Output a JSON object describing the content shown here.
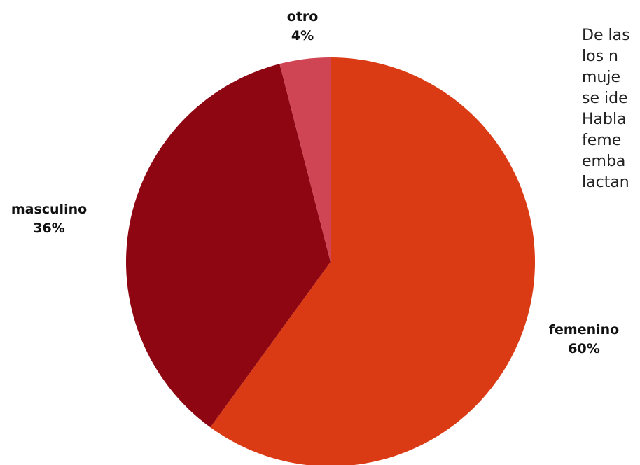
{
  "chart_data": {
    "type": "pie",
    "categories": [
      "femenino",
      "masculino",
      "otro"
    ],
    "values": [
      60,
      36,
      4
    ],
    "colors": [
      "#db3b14",
      "#8e0612",
      "#cf4554"
    ],
    "labels": [
      {
        "name": "otro",
        "percent": "4%"
      },
      {
        "name": "masculino",
        "percent": "36%"
      },
      {
        "name": "femenino",
        "percent": "60%"
      }
    ],
    "legend": "none"
  },
  "side_text": {
    "lines": [
      "De las",
      "los n",
      "muje",
      "se ide",
      "Habla",
      "feme",
      "emba",
      "lactan"
    ]
  }
}
